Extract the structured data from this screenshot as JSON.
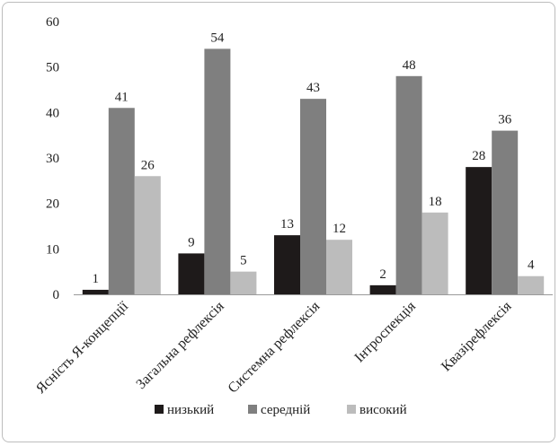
{
  "chart_data": {
    "type": "bar",
    "categories": [
      "Ясність Я-концепції",
      "Загальна рефлексія",
      "Системна рефлексія",
      "Інтроспекція",
      "Квазірефлексія"
    ],
    "series": [
      {
        "name": "низький",
        "color": "#1e1a1a",
        "values": [
          1,
          9,
          13,
          2,
          28
        ]
      },
      {
        "name": "середній",
        "color": "#7f7f7f",
        "values": [
          41,
          54,
          43,
          48,
          36
        ]
      },
      {
        "name": "високий",
        "color": "#bcbcbc",
        "values": [
          26,
          5,
          12,
          18,
          4
        ]
      }
    ],
    "yticks": [
      "0",
      "10",
      "20",
      "30",
      "40",
      "50",
      "60"
    ],
    "ylim": [
      0,
      60
    ],
    "grid": false,
    "legend_position": "bottom",
    "data_labels": true
  }
}
